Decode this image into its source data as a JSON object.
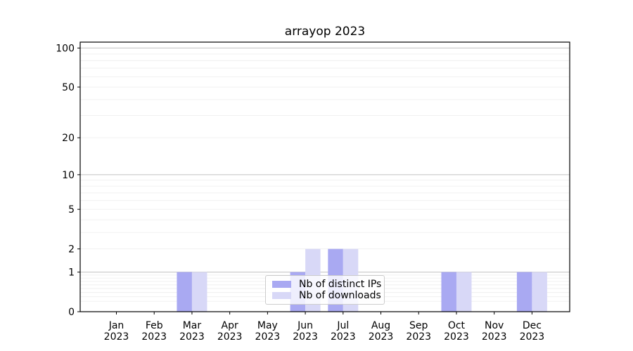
{
  "chart_data": {
    "type": "bar",
    "title": "arrayop 2023",
    "categories": [
      "Jan 2023",
      "Feb 2023",
      "Mar 2023",
      "Apr 2023",
      "May 2023",
      "Jun 2023",
      "Jul 2023",
      "Aug 2023",
      "Sep 2023",
      "Oct 2023",
      "Nov 2023",
      "Dec 2023"
    ],
    "series": [
      {
        "name": "Nb of distinct IPs",
        "color": "#a9a9f2",
        "values": [
          0,
          0,
          1,
          0,
          0,
          1,
          2,
          0,
          0,
          1,
          0,
          1
        ]
      },
      {
        "name": "Nb of downloads",
        "color": "#d8d8f7",
        "values": [
          0,
          0,
          1,
          0,
          0,
          2,
          2,
          0,
          0,
          1,
          0,
          1
        ]
      }
    ],
    "yticks": [
      0,
      1,
      2,
      5,
      10,
      20,
      50,
      100
    ],
    "minor_gridline_values": [
      0.2,
      0.3,
      0.4,
      0.5,
      0.6,
      0.7,
      0.8,
      0.9,
      2,
      3,
      4,
      5,
      6,
      7,
      8,
      9,
      20,
      30,
      40,
      50,
      60,
      70,
      80,
      90
    ],
    "major_gridline_values": [
      1,
      10,
      100
    ],
    "scale": "log10(1+y)",
    "ylim": [
      0,
      111
    ],
    "grid": true,
    "legend_position": "lower center",
    "colors": {
      "axis": "#000000",
      "tick_label": "#000000",
      "grid_major": "#c0c0c0",
      "grid_minor": "#efefef",
      "legend_border": "#cccccc"
    }
  }
}
